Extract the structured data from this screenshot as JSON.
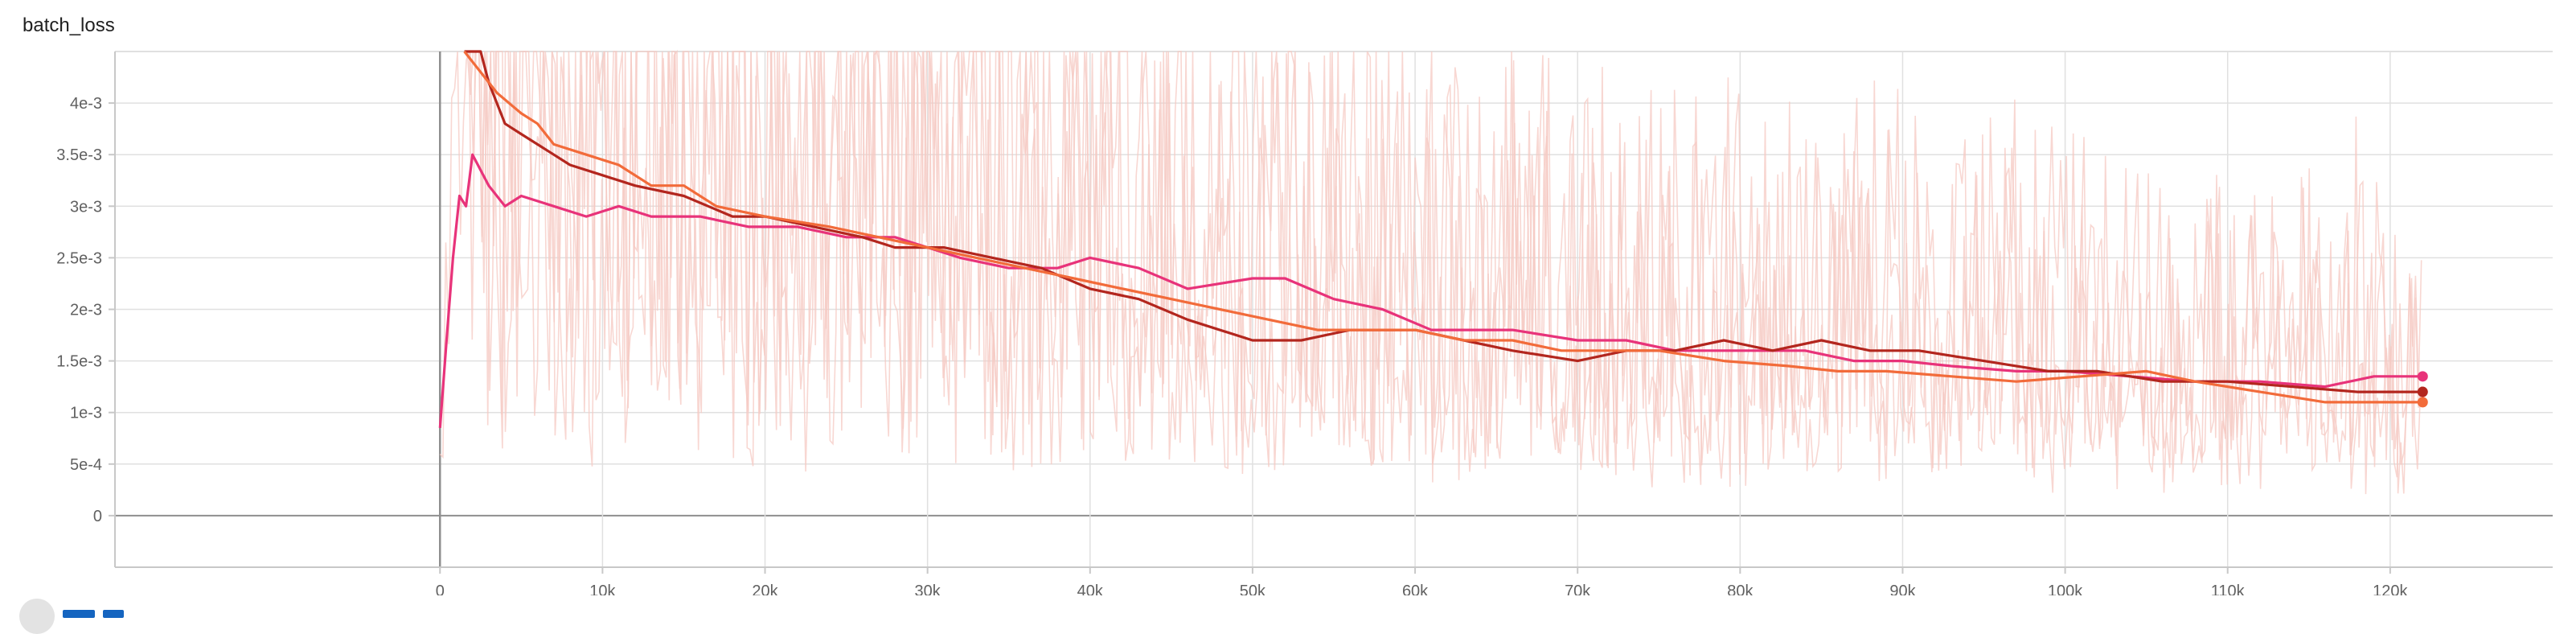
{
  "card": {
    "title": "batch_loss"
  },
  "colors": {
    "run_a": "#e8337a",
    "run_b": "#b3261e",
    "run_c": "#f26b3a",
    "raw": "#f6c9c3",
    "grid": "#e0e0e0",
    "axis": "#9e9e9e"
  },
  "icons": [
    "fit-domain-icon",
    "download-icon",
    "expand-icon"
  ],
  "chart_data": {
    "type": "line",
    "title": "batch_loss",
    "xlabel": "",
    "ylabel": "",
    "xlim": [
      -20000,
      130000
    ],
    "ylim": [
      -0.0005,
      0.0045
    ],
    "x_ticks": [
      0,
      10000,
      20000,
      30000,
      40000,
      50000,
      60000,
      70000,
      80000,
      90000,
      100000,
      110000,
      120000
    ],
    "x_tick_labels": [
      "0",
      "10k",
      "20k",
      "30k",
      "40k",
      "50k",
      "60k",
      "70k",
      "80k",
      "90k",
      "100k",
      "110k",
      "120k"
    ],
    "y_ticks": [
      0,
      0.0005,
      0.001,
      0.0015,
      0.002,
      0.0025,
      0.003,
      0.0035,
      0.004
    ],
    "y_tick_labels": [
      "0",
      "5e-4",
      "1e-3",
      "1.5e-3",
      "2e-3",
      "2.5e-3",
      "3e-3",
      "3.5e-3",
      "4e-3"
    ],
    "grid": true,
    "legend": "none",
    "series": [
      {
        "key": "run_a",
        "points": [
          [
            0,
            0.00085
          ],
          [
            400,
            0.0017
          ],
          [
            800,
            0.0025
          ],
          [
            1200,
            0.0031
          ],
          [
            1600,
            0.003
          ],
          [
            2000,
            0.0035
          ],
          [
            3000,
            0.0032
          ],
          [
            4000,
            0.003
          ],
          [
            5000,
            0.0031
          ],
          [
            7000,
            0.003
          ],
          [
            9000,
            0.0029
          ],
          [
            11000,
            0.003
          ],
          [
            13000,
            0.0029
          ],
          [
            16000,
            0.0029
          ],
          [
            19000,
            0.0028
          ],
          [
            22000,
            0.0028
          ],
          [
            25000,
            0.0027
          ],
          [
            28000,
            0.0027
          ],
          [
            32000,
            0.0025
          ],
          [
            35000,
            0.0024
          ],
          [
            38000,
            0.0024
          ],
          [
            40000,
            0.0025
          ],
          [
            43000,
            0.0024
          ],
          [
            46000,
            0.0022
          ],
          [
            50000,
            0.0023
          ],
          [
            52000,
            0.0023
          ],
          [
            55000,
            0.0021
          ],
          [
            58000,
            0.002
          ],
          [
            61000,
            0.0018
          ],
          [
            64000,
            0.0018
          ],
          [
            66000,
            0.0018
          ],
          [
            70000,
            0.0017
          ],
          [
            73000,
            0.0017
          ],
          [
            76000,
            0.0016
          ],
          [
            80000,
            0.0016
          ],
          [
            84000,
            0.0016
          ],
          [
            87000,
            0.0015
          ],
          [
            90000,
            0.0015
          ],
          [
            93000,
            0.00145
          ],
          [
            97000,
            0.0014
          ],
          [
            100000,
            0.0014
          ],
          [
            104000,
            0.00135
          ],
          [
            108000,
            0.0013
          ],
          [
            112000,
            0.0013
          ],
          [
            116000,
            0.00125
          ],
          [
            119000,
            0.00135
          ],
          [
            122000,
            0.00135
          ]
        ]
      },
      {
        "key": "run_b",
        "points": [
          [
            1500,
            0.0052
          ],
          [
            2500,
            0.0045
          ],
          [
            3000,
            0.0042
          ],
          [
            4000,
            0.0038
          ],
          [
            5000,
            0.0037
          ],
          [
            6000,
            0.0036
          ],
          [
            7000,
            0.0035
          ],
          [
            8000,
            0.0034
          ],
          [
            10000,
            0.0033
          ],
          [
            12000,
            0.0032
          ],
          [
            15000,
            0.0031
          ],
          [
            18000,
            0.0029
          ],
          [
            20000,
            0.0029
          ],
          [
            23000,
            0.0028
          ],
          [
            26000,
            0.0027
          ],
          [
            28000,
            0.0026
          ],
          [
            31000,
            0.0026
          ],
          [
            34000,
            0.0025
          ],
          [
            37000,
            0.0024
          ],
          [
            40000,
            0.0022
          ],
          [
            43000,
            0.0021
          ],
          [
            46000,
            0.0019
          ],
          [
            50000,
            0.0017
          ],
          [
            53000,
            0.0017
          ],
          [
            56000,
            0.0018
          ],
          [
            60000,
            0.0018
          ],
          [
            63000,
            0.0017
          ],
          [
            66000,
            0.0016
          ],
          [
            70000,
            0.0015
          ],
          [
            73000,
            0.0016
          ],
          [
            76000,
            0.0016
          ],
          [
            79000,
            0.0017
          ],
          [
            82000,
            0.0016
          ],
          [
            85000,
            0.0017
          ],
          [
            88000,
            0.0016
          ],
          [
            91000,
            0.0016
          ],
          [
            95000,
            0.0015
          ],
          [
            99000,
            0.0014
          ],
          [
            102000,
            0.0014
          ],
          [
            106000,
            0.0013
          ],
          [
            110000,
            0.0013
          ],
          [
            114000,
            0.00125
          ],
          [
            118000,
            0.0012
          ],
          [
            122000,
            0.0012
          ]
        ]
      },
      {
        "key": "run_c",
        "points": [
          [
            1500,
            0.0048
          ],
          [
            2500,
            0.0043
          ],
          [
            3500,
            0.0041
          ],
          [
            5000,
            0.0039
          ],
          [
            6000,
            0.0038
          ],
          [
            7000,
            0.0036
          ],
          [
            9000,
            0.0035
          ],
          [
            11000,
            0.0034
          ],
          [
            13000,
            0.0032
          ],
          [
            15000,
            0.0032
          ],
          [
            17000,
            0.003
          ],
          [
            20000,
            0.0029
          ],
          [
            24000,
            0.0028
          ],
          [
            27000,
            0.0027
          ],
          [
            30000,
            0.0026
          ],
          [
            33000,
            0.0025
          ],
          [
            36000,
            0.0024
          ],
          [
            39000,
            0.0023
          ],
          [
            42000,
            0.0022
          ],
          [
            45000,
            0.0021
          ],
          [
            48000,
            0.002
          ],
          [
            51000,
            0.0019
          ],
          [
            54000,
            0.0018
          ],
          [
            57000,
            0.0018
          ],
          [
            60000,
            0.0018
          ],
          [
            63000,
            0.0017
          ],
          [
            66000,
            0.0017
          ],
          [
            69000,
            0.0016
          ],
          [
            72000,
            0.0016
          ],
          [
            75000,
            0.0016
          ],
          [
            79000,
            0.0015
          ],
          [
            83000,
            0.00145
          ],
          [
            86000,
            0.0014
          ],
          [
            89000,
            0.0014
          ],
          [
            93000,
            0.00135
          ],
          [
            97000,
            0.0013
          ],
          [
            101000,
            0.00135
          ],
          [
            105000,
            0.0014
          ],
          [
            108000,
            0.0013
          ],
          [
            112000,
            0.0012
          ],
          [
            116000,
            0.0011
          ],
          [
            120000,
            0.0011
          ],
          [
            122000,
            0.0011
          ]
        ]
      }
    ]
  }
}
